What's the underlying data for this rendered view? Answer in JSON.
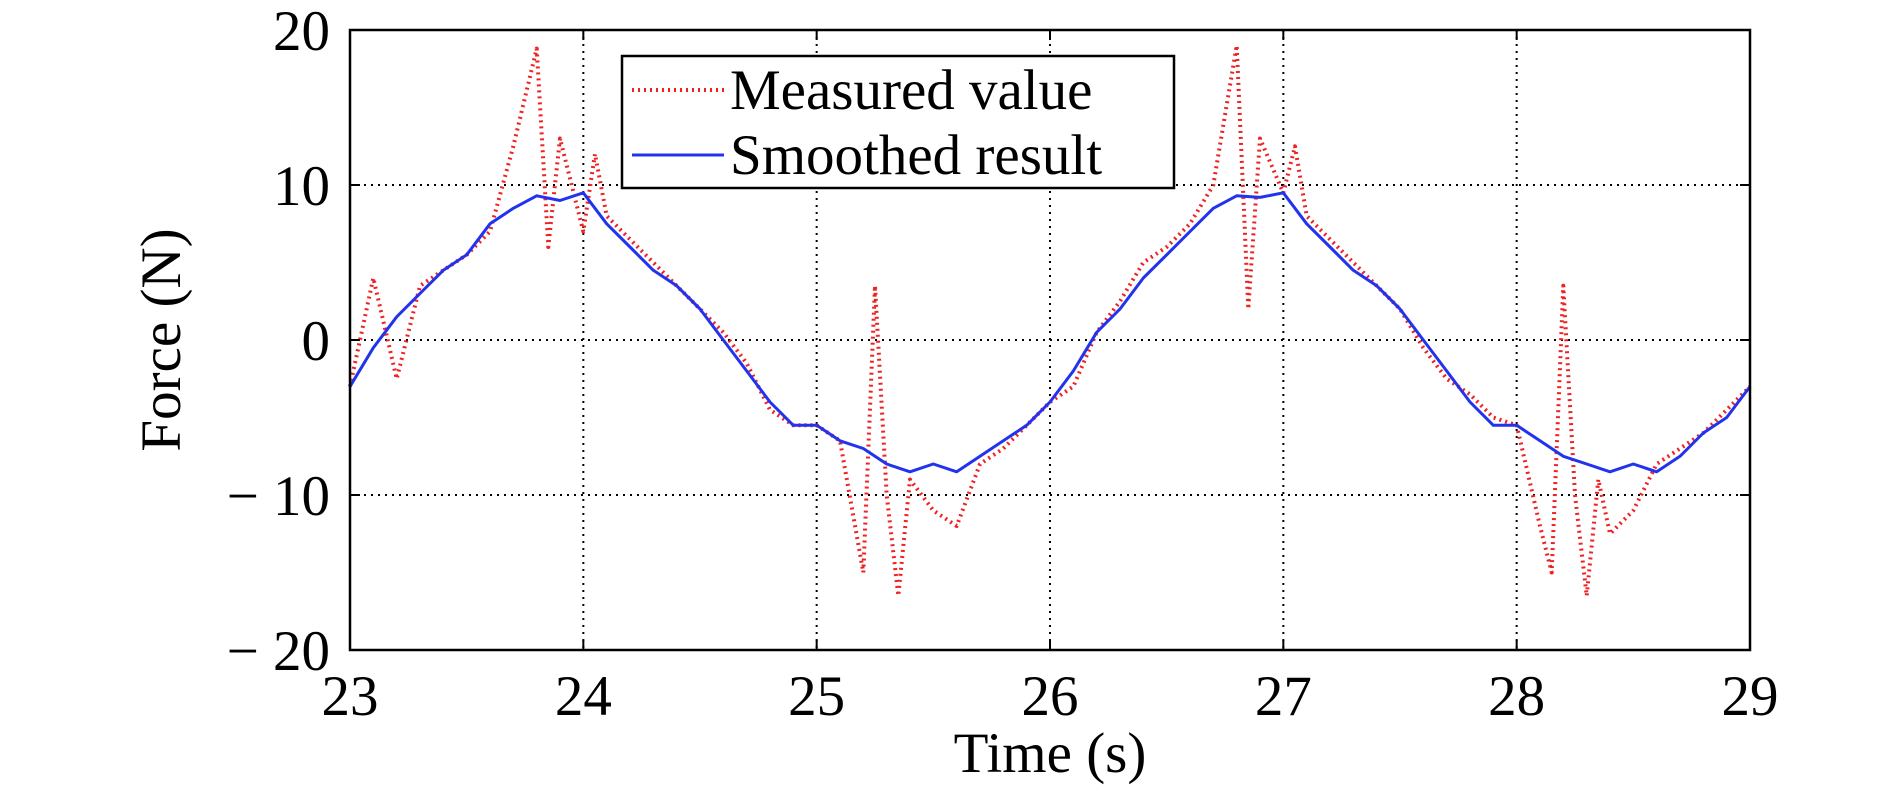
{
  "chart_data": {
    "type": "line",
    "title": "",
    "xlabel": "Time (s)",
    "ylabel": "Force (N)",
    "xlim": [
      23,
      29
    ],
    "ylim": [
      -20,
      20
    ],
    "x_ticks": [
      23,
      24,
      25,
      26,
      27,
      28,
      29
    ],
    "x_tick_labels": [
      "23",
      "24",
      "25",
      "26",
      "27",
      "28",
      "29"
    ],
    "y_ticks": [
      20,
      10,
      0,
      -10,
      -20
    ],
    "y_tick_labels": [
      "20",
      "10",
      "0",
      "− 10",
      "− 20"
    ],
    "grid": true,
    "legend_position": "top-center",
    "series": [
      {
        "name": "Measured value",
        "color": "#ee2222",
        "style": "dotted",
        "x": [
          23.0,
          23.1,
          23.2,
          23.3,
          23.4,
          23.5,
          23.6,
          23.7,
          23.8,
          23.85,
          23.9,
          24.0,
          24.05,
          24.1,
          24.2,
          24.3,
          24.4,
          24.5,
          24.6,
          24.7,
          24.8,
          24.9,
          25.0,
          25.1,
          25.2,
          25.25,
          25.3,
          25.35,
          25.4,
          25.5,
          25.6,
          25.7,
          25.8,
          25.9,
          26.0,
          26.1,
          26.2,
          26.3,
          26.4,
          26.5,
          26.6,
          26.7,
          26.8,
          26.85,
          26.9,
          27.0,
          27.05,
          27.1,
          27.2,
          27.3,
          27.4,
          27.5,
          27.6,
          27.7,
          27.8,
          27.9,
          28.0,
          28.1,
          28.15,
          28.2,
          28.25,
          28.3,
          28.35,
          28.4,
          28.5,
          28.6,
          28.7,
          28.8,
          28.9,
          29.0
        ],
        "y": [
          -3.0,
          4.0,
          -2.5,
          3.5,
          4.5,
          5.5,
          7.0,
          12.5,
          18.8,
          6.0,
          13.0,
          7.0,
          12.0,
          8.0,
          6.5,
          5.0,
          3.5,
          2.0,
          0.5,
          -1.5,
          -4.5,
          -5.5,
          -5.5,
          -6.5,
          -15.0,
          3.5,
          -10.0,
          -16.5,
          -9.0,
          -11.0,
          -12.0,
          -8.0,
          -7.0,
          -5.5,
          -4.0,
          -3.0,
          0.5,
          2.5,
          5.0,
          6.0,
          7.5,
          10.0,
          19.0,
          2.0,
          13.0,
          9.5,
          12.5,
          8.0,
          6.5,
          5.0,
          3.5,
          2.0,
          -0.5,
          -2.5,
          -3.5,
          -5.0,
          -5.5,
          -12.0,
          -15.0,
          3.5,
          -10.0,
          -16.5,
          -9.0,
          -12.5,
          -11.0,
          -8.0,
          -7.0,
          -6.0,
          -4.5,
          -3.0
        ]
      },
      {
        "name": "Smoothed result",
        "color": "#2233ee",
        "style": "solid",
        "x": [
          23.0,
          23.1,
          23.2,
          23.3,
          23.4,
          23.5,
          23.6,
          23.7,
          23.8,
          23.9,
          24.0,
          24.1,
          24.2,
          24.3,
          24.4,
          24.5,
          24.6,
          24.7,
          24.8,
          24.9,
          25.0,
          25.1,
          25.2,
          25.3,
          25.4,
          25.5,
          25.6,
          25.7,
          25.8,
          25.9,
          26.0,
          26.1,
          26.2,
          26.3,
          26.4,
          26.5,
          26.6,
          26.7,
          26.8,
          26.9,
          27.0,
          27.1,
          27.2,
          27.3,
          27.4,
          27.5,
          27.6,
          27.7,
          27.8,
          27.9,
          28.0,
          28.1,
          28.2,
          28.3,
          28.4,
          28.5,
          28.6,
          28.7,
          28.8,
          28.9,
          29.0
        ],
        "y": [
          -3.0,
          -0.5,
          1.5,
          3.0,
          4.5,
          5.5,
          7.5,
          8.5,
          9.3,
          9.0,
          9.5,
          7.5,
          6.0,
          4.5,
          3.5,
          2.0,
          0.0,
          -2.0,
          -4.0,
          -5.5,
          -5.5,
          -6.5,
          -7.0,
          -8.0,
          -8.5,
          -8.0,
          -8.5,
          -7.5,
          -6.5,
          -5.5,
          -4.0,
          -2.0,
          0.5,
          2.0,
          4.0,
          5.5,
          7.0,
          8.5,
          9.3,
          9.2,
          9.5,
          7.5,
          6.0,
          4.5,
          3.5,
          2.0,
          0.0,
          -2.0,
          -4.0,
          -5.5,
          -5.5,
          -6.5,
          -7.5,
          -8.0,
          -8.5,
          -8.0,
          -8.5,
          -7.5,
          -6.0,
          -5.0,
          -3.0
        ]
      }
    ]
  }
}
